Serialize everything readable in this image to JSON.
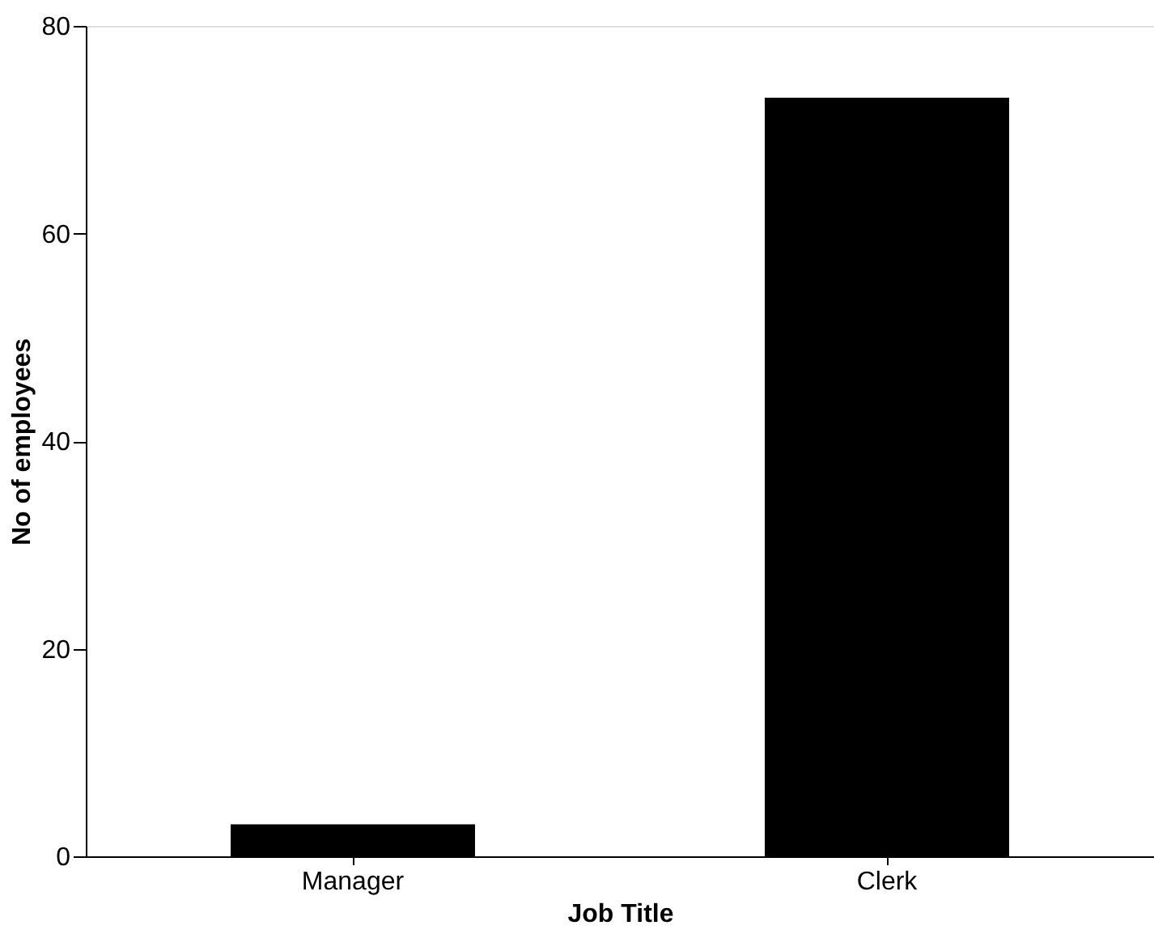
{
  "chart_data": {
    "type": "bar",
    "xlabel": "Job Title",
    "ylabel": "No of employees",
    "categories": [
      "Manager",
      "Clerk"
    ],
    "values": [
      3,
      73
    ],
    "color": "#000000",
    "ylim": [
      0,
      80
    ],
    "yticks": [
      0,
      20,
      40,
      60,
      80
    ],
    "grid": false
  }
}
